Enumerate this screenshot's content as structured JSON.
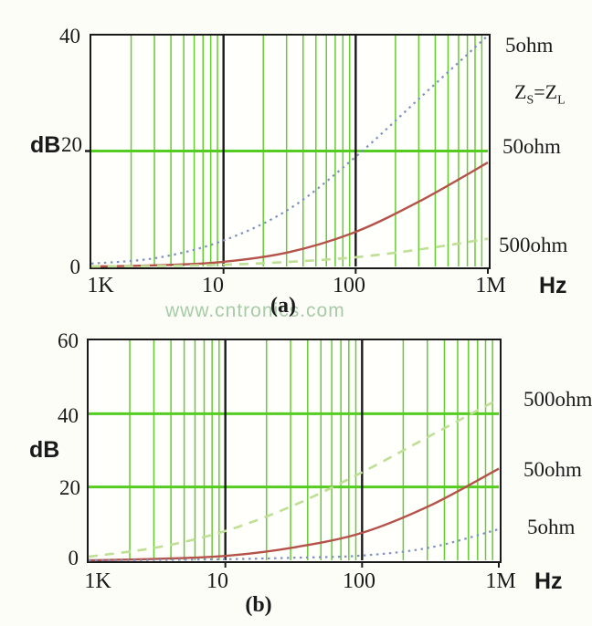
{
  "page": {
    "watermark": "www.cntronics.com"
  },
  "condition_label": {
    "lhs": "Z",
    "lhs_sub": "S",
    "op": "=",
    "rhs": "Z",
    "rhs_sub": "L"
  },
  "colors": {
    "grid_green": "#66cc33",
    "major_green": "#55cc22",
    "decade_black": "#1a1a1a",
    "curve_blue": "#8090c0",
    "curve_red": "#b5524a",
    "curve_lightgreen": "#bfdf95",
    "watermark_green": "#a7cba7"
  },
  "chart_data": [
    {
      "type": "line",
      "name": "insertion-loss-a",
      "caption": "(a)",
      "ylabel": "dB",
      "x_unit": "Hz",
      "xscale": "log",
      "decades": 3,
      "x_tick_labels": [
        "1K",
        "10",
        "100",
        "1M"
      ],
      "ylim": [
        0,
        40
      ],
      "y_tick_labels": [
        "40",
        "20",
        "0"
      ],
      "y_tick_values": [
        40,
        20,
        0
      ],
      "h_gridlines_db": [
        20
      ],
      "left_ticks_db": [
        20
      ],
      "annotation": "Zs=ZL (source impedance equals load impedance)",
      "series": [
        {
          "name": "5ohm",
          "style": "dotted",
          "color": "#8090c0",
          "x_decades": [
            0,
            0.5,
            1,
            1.5,
            2,
            2.5,
            3
          ],
          "values": [
            0.5,
            1.5,
            4.5,
            10,
            19,
            29.5,
            40
          ]
        },
        {
          "name": "50ohm",
          "style": "solid",
          "color": "#b5524a",
          "x_decades": [
            0,
            0.5,
            1,
            1.5,
            2,
            2.5,
            3
          ],
          "values": [
            0,
            0.2,
            0.8,
            2.5,
            6,
            11.5,
            18
          ]
        },
        {
          "name": "500ohm",
          "style": "dashed",
          "color": "#bfdf95",
          "x_decades": [
            0,
            0.5,
            1,
            1.5,
            2,
            2.5,
            3
          ],
          "values": [
            0,
            0.1,
            0.3,
            0.8,
            1.6,
            3,
            4.8
          ]
        }
      ],
      "curve_labels": [
        "5ohm",
        "50ohm",
        "500ohm"
      ]
    },
    {
      "type": "line",
      "name": "insertion-loss-b",
      "caption": "(b)",
      "ylabel": "dB",
      "x_unit": "Hz",
      "xscale": "log",
      "decades": 3,
      "x_tick_labels": [
        "1K",
        "10",
        "100",
        "1M"
      ],
      "ylim": [
        0,
        60
      ],
      "y_tick_labels": [
        "60",
        "40",
        "20",
        "0"
      ],
      "y_tick_values": [
        60,
        40,
        20,
        0
      ],
      "h_gridlines_db": [
        40,
        20
      ],
      "left_ticks_db": [],
      "annotation": "",
      "series": [
        {
          "name": "500ohm",
          "style": "dashed",
          "color": "#bfdf95",
          "x_decades": [
            0,
            0.5,
            1,
            1.5,
            2,
            2.5,
            3
          ],
          "values": [
            1,
            3.5,
            8,
            15,
            24,
            34,
            44
          ]
        },
        {
          "name": "50ohm",
          "style": "solid",
          "color": "#b5524a",
          "x_decades": [
            0,
            0.5,
            1,
            1.5,
            2,
            2.5,
            3
          ],
          "values": [
            0,
            0.4,
            1.2,
            3.5,
            7.5,
            15,
            25
          ]
        },
        {
          "name": "5ohm",
          "style": "dotted",
          "color": "#8090c0",
          "x_decades": [
            0,
            0.5,
            1,
            1.5,
            2,
            2.5,
            3
          ],
          "values": [
            0,
            0.1,
            0.3,
            0.7,
            1.3,
            3.5,
            8.5
          ]
        }
      ],
      "curve_labels": [
        "500ohm",
        "50ohm",
        "5ohm"
      ]
    }
  ]
}
